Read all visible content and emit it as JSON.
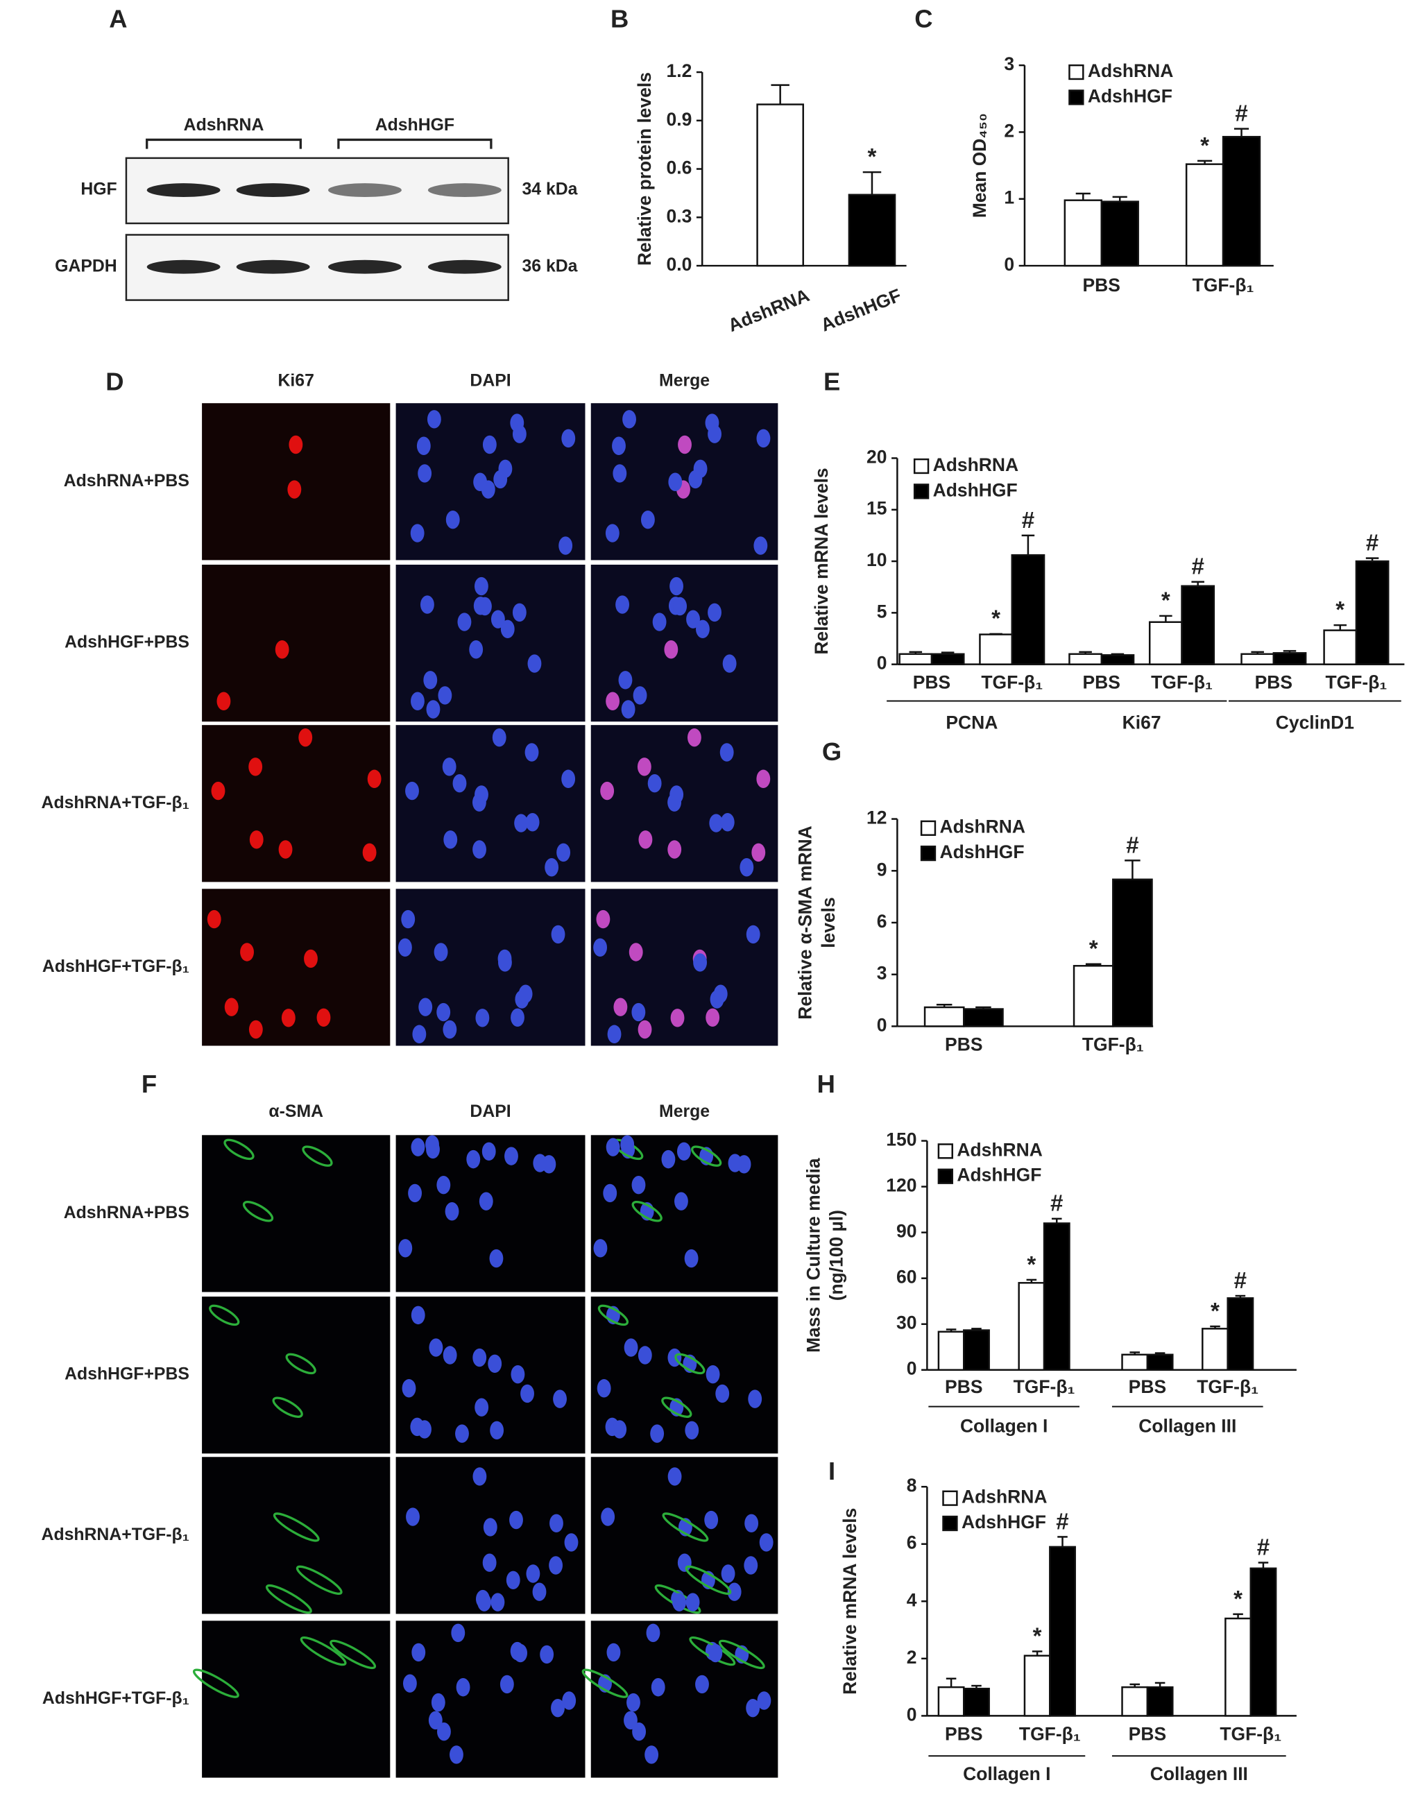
{
  "blot": {
    "label": "A",
    "groups": [
      "AdshRNA",
      "AdshHGF"
    ],
    "rows": [
      {
        "name": "HGF",
        "size": "34 kDa"
      },
      {
        "name": "GAPDH",
        "size": "36 kDa"
      }
    ]
  },
  "micrographs": [
    {
      "label": "D",
      "columns": [
        "Ki67",
        "DAPI",
        "Merge"
      ],
      "rows": [
        "AdshRNA+PBS",
        "AdshHGF+PBS",
        "AdshRNA+TGF-β₁",
        "AdshHGF+TGF-β₁"
      ]
    },
    {
      "label": "F",
      "columns": [
        "α-SMA",
        "DAPI",
        "Merge"
      ],
      "rows": [
        "AdshRNA+PBS",
        "AdshHGF+PBS",
        "AdshRNA+TGF-β₁",
        "AdshHGF+TGF-β₁"
      ]
    }
  ],
  "chart_data": [
    {
      "type": "bar",
      "label": "B",
      "ylabel": "Relative protein levels",
      "categories": [
        "AdshRNA",
        "AdshHGF"
      ],
      "values": [
        1.0,
        0.44
      ],
      "errors": [
        0.12,
        0.14
      ],
      "colors": [
        "#ffffff",
        "#000000"
      ],
      "signif": [
        null,
        "*"
      ],
      "ylim": [
        0,
        1.2
      ],
      "yticks": [
        {
          "value": 0,
          "label": "0.0"
        },
        0.3,
        0.6,
        0.9,
        1.2
      ]
    },
    {
      "type": "bar",
      "label": "C",
      "ylabel": "Mean OD₄₅₀",
      "categories": [
        "PBS",
        "TGF-β₁"
      ],
      "series": [
        {
          "name": "AdshRNA",
          "color": "#ffffff",
          "values": [
            0.98,
            1.52
          ],
          "errors": [
            0.1,
            0.05
          ],
          "signif": [
            null,
            "*"
          ]
        },
        {
          "name": "AdshHGF",
          "color": "#000000",
          "values": [
            0.96,
            1.93
          ],
          "errors": [
            0.07,
            0.12
          ],
          "signif": [
            null,
            "#"
          ]
        }
      ],
      "ylim": [
        0,
        3
      ],
      "yticks": [
        0,
        1,
        2,
        3
      ]
    },
    {
      "type": "bar",
      "label": "E",
      "ylabel": "Relative mRNA levels",
      "categories": [
        "PBS",
        "TGF-β₁",
        "PBS",
        "TGF-β₁",
        "PBS",
        "TGF-β₁"
      ],
      "groups": [
        "PCNA",
        "Ki67",
        "CyclinD1"
      ],
      "series": [
        {
          "name": "AdshRNA",
          "color": "#ffffff",
          "values": [
            1.0,
            2.9,
            1.0,
            4.1,
            1.0,
            3.3
          ],
          "errors": [
            0.2,
            0.05,
            0.2,
            0.6,
            0.2,
            0.5
          ],
          "signif": [
            null,
            "*",
            null,
            "*",
            null,
            "*"
          ]
        },
        {
          "name": "AdshHGF",
          "color": "#000000",
          "values": [
            1.0,
            10.6,
            0.9,
            7.6,
            1.1,
            10.0
          ],
          "errors": [
            0.15,
            1.9,
            0.1,
            0.4,
            0.2,
            0.3
          ],
          "signif": [
            null,
            "#",
            null,
            "#",
            null,
            "#"
          ]
        }
      ],
      "ylim": [
        0,
        20
      ],
      "yticks": [
        0,
        5,
        10,
        15,
        20
      ]
    },
    {
      "type": "bar",
      "label": "G",
      "ylabel": [
        "Relative α-SMA mRNA",
        "levels"
      ],
      "categories": [
        "PBS",
        "TGF-β₁"
      ],
      "series": [
        {
          "name": "AdshRNA",
          "color": "#ffffff",
          "values": [
            1.1,
            3.5
          ],
          "errors": [
            0.15,
            0.1
          ],
          "signif": [
            null,
            "*"
          ]
        },
        {
          "name": "AdshHGF",
          "color": "#000000",
          "values": [
            1.0,
            8.5
          ],
          "errors": [
            0.1,
            1.1
          ],
          "signif": [
            null,
            "#"
          ]
        }
      ],
      "ylim": [
        0,
        12
      ],
      "yticks": [
        0,
        3,
        6,
        9,
        12
      ]
    },
    {
      "type": "bar",
      "label": "H",
      "ylabel": [
        "Mass in Culture media",
        "(ng/100 µl)"
      ],
      "categories": [
        "PBS",
        "TGF-β₁",
        "PBS",
        "TGF-β₁"
      ],
      "groups": [
        "Collagen I",
        "Collagen III"
      ],
      "series": [
        {
          "name": "AdshRNA",
          "color": "#ffffff",
          "values": [
            25,
            57,
            10,
            27
          ],
          "errors": [
            1.5,
            2,
            1.5,
            1.5
          ],
          "signif": [
            null,
            "*",
            null,
            "*"
          ]
        },
        {
          "name": "AdshHGF",
          "color": "#000000",
          "values": [
            26,
            96,
            10,
            47
          ],
          "errors": [
            1,
            3,
            1,
            1.5
          ],
          "signif": [
            null,
            "#",
            null,
            "#"
          ]
        }
      ],
      "ylim": [
        0,
        150
      ],
      "yticks": [
        0,
        30,
        60,
        90,
        120,
        150
      ]
    },
    {
      "type": "bar",
      "label": "I",
      "ylabel": "Relative mRNA levels",
      "categories": [
        "PBS",
        "TGF-β₁",
        "PBS",
        "TGF-β₁"
      ],
      "groups": [
        "Collagen I",
        "Collagen III"
      ],
      "series": [
        {
          "name": "AdshRNA",
          "color": "#ffffff",
          "values": [
            1.0,
            2.1,
            1.0,
            3.4
          ],
          "errors": [
            0.3,
            0.15,
            0.1,
            0.15
          ],
          "signif": [
            null,
            "*",
            null,
            "*"
          ]
        },
        {
          "name": "AdshHGF",
          "color": "#000000",
          "values": [
            0.95,
            5.9,
            1.0,
            5.15
          ],
          "errors": [
            0.1,
            0.35,
            0.15,
            0.2
          ],
          "signif": [
            null,
            "#",
            null,
            "#"
          ]
        }
      ],
      "ylim": [
        0,
        8
      ],
      "yticks": [
        0,
        2,
        4,
        6,
        8
      ]
    }
  ]
}
